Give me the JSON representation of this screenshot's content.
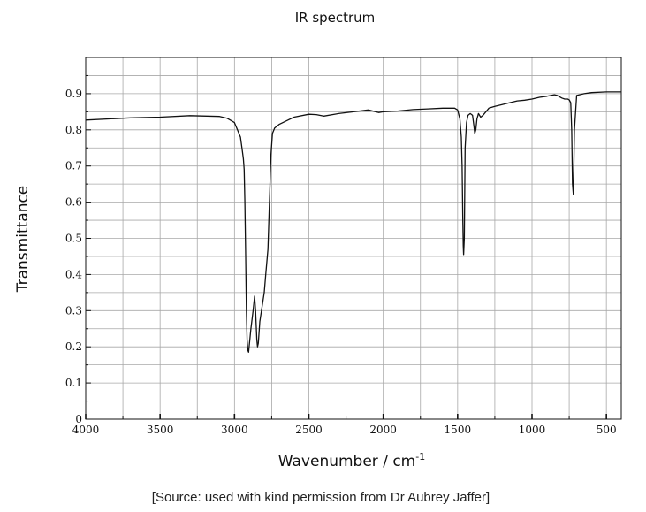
{
  "chart_data": {
    "type": "line",
    "title": "IR spectrum",
    "xlabel": "Wavenumber / cm",
    "xlabel_sup": "-1",
    "ylabel": "Transmittance",
    "source": "[Source: used with kind permission from Dr Aubrey Jaffer]",
    "xlim": [
      4000,
      400
    ],
    "ylim": [
      0,
      1.0
    ],
    "x_ticks": [
      4000,
      3500,
      3000,
      2500,
      2000,
      1500,
      1000,
      500
    ],
    "x_tick_labels": [
      "4000",
      "3500",
      "3000",
      "2500",
      "2000",
      "1500",
      "1000",
      "500"
    ],
    "y_ticks": [
      0,
      0.1,
      0.2,
      0.3,
      0.4,
      0.5,
      0.6,
      0.7,
      0.8,
      0.9
    ],
    "y_tick_labels": [
      "0",
      "0.1",
      "0.2",
      "0.3",
      "0.4",
      "0.5",
      "0.6",
      "0.7",
      "0.8",
      "0.9"
    ],
    "grid": true,
    "series": [
      {
        "x": [
          4000,
          3700,
          3500,
          3300,
          3100,
          3050,
          3000,
          2980,
          2960,
          2950,
          2940,
          2935,
          2930,
          2925,
          2920,
          2915,
          2910,
          2905,
          2890,
          2875,
          2865,
          2858,
          2850,
          2845,
          2840,
          2830,
          2815,
          2800,
          2790,
          2775,
          2765,
          2755,
          2745,
          2730,
          2700,
          2650,
          2600,
          2500,
          2450,
          2400,
          2300,
          2200,
          2100,
          2030,
          2000,
          1900,
          1800,
          1700,
          1600,
          1520,
          1500,
          1485,
          1475,
          1470,
          1465,
          1462,
          1460,
          1455,
          1450,
          1440,
          1430,
          1415,
          1400,
          1390,
          1385,
          1378,
          1370,
          1360,
          1345,
          1330,
          1310,
          1290,
          1250,
          1200,
          1150,
          1100,
          1050,
          1000,
          950,
          900,
          850,
          830,
          800,
          780,
          760,
          750,
          740,
          733,
          728,
          722,
          715,
          700,
          650,
          600,
          500,
          400
        ],
        "y": [
          0.827,
          0.833,
          0.835,
          0.839,
          0.837,
          0.832,
          0.82,
          0.8,
          0.78,
          0.75,
          0.72,
          0.69,
          0.6,
          0.45,
          0.3,
          0.22,
          0.19,
          0.185,
          0.25,
          0.3,
          0.34,
          0.3,
          0.22,
          0.2,
          0.21,
          0.27,
          0.31,
          0.35,
          0.4,
          0.47,
          0.6,
          0.73,
          0.79,
          0.805,
          0.815,
          0.825,
          0.835,
          0.843,
          0.842,
          0.838,
          0.845,
          0.85,
          0.855,
          0.848,
          0.85,
          0.852,
          0.856,
          0.858,
          0.86,
          0.86,
          0.855,
          0.83,
          0.78,
          0.7,
          0.55,
          0.48,
          0.455,
          0.5,
          0.75,
          0.82,
          0.84,
          0.845,
          0.84,
          0.81,
          0.79,
          0.8,
          0.83,
          0.845,
          0.835,
          0.84,
          0.85,
          0.86,
          0.865,
          0.87,
          0.875,
          0.88,
          0.882,
          0.885,
          0.89,
          0.893,
          0.897,
          0.895,
          0.888,
          0.885,
          0.885,
          0.883,
          0.875,
          0.8,
          0.65,
          0.62,
          0.8,
          0.895,
          0.9,
          0.903,
          0.905,
          0.905
        ]
      }
    ]
  }
}
